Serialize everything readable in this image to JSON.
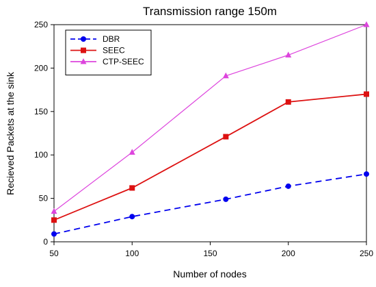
{
  "chart_data": {
    "type": "line",
    "title": "Transmission range 150m",
    "xlabel": "Number of nodes",
    "ylabel": "Recieved Packets at the sink",
    "xlim": [
      50,
      250
    ],
    "ylim": [
      0,
      250
    ],
    "xticks": [
      50,
      100,
      150,
      200,
      250
    ],
    "yticks": [
      0,
      50,
      100,
      150,
      200,
      250
    ],
    "grid": false,
    "legend_position": "top-left",
    "series": [
      {
        "name": "DBR",
        "color": "#0000ee",
        "marker": "circle",
        "dash": "dashed",
        "x": [
          50,
          100,
          160,
          200,
          250
        ],
        "y": [
          9,
          29,
          49,
          64,
          78
        ]
      },
      {
        "name": "SEEC",
        "color": "#dd1111",
        "marker": "square",
        "dash": "solid",
        "x": [
          50,
          100,
          160,
          200,
          250
        ],
        "y": [
          25,
          62,
          121,
          161,
          170
        ]
      },
      {
        "name": "CTP-SEEC",
        "color": "#dd44dd",
        "marker": "triangle",
        "dash": "solid",
        "x": [
          50,
          100,
          160,
          200,
          250
        ],
        "y": [
          35,
          103,
          191,
          215,
          250
        ]
      }
    ]
  }
}
